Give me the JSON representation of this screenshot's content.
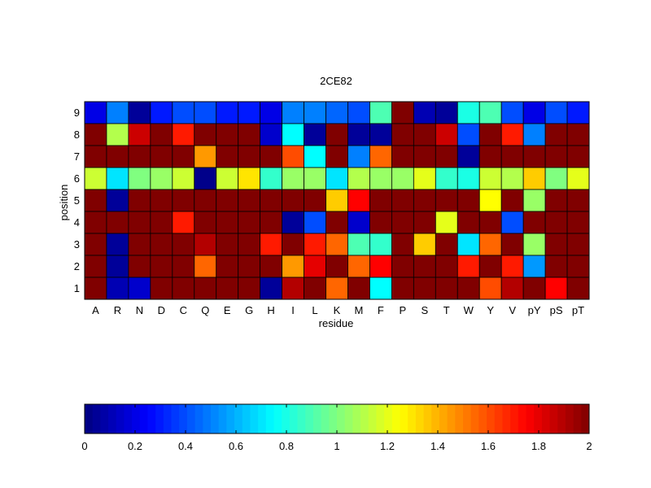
{
  "chart_data": {
    "type": "heatmap",
    "title": "2CE82",
    "xlabel": "residue",
    "ylabel": "position",
    "x_categories": [
      "A",
      "R",
      "N",
      "D",
      "C",
      "Q",
      "E",
      "G",
      "H",
      "I",
      "L",
      "K",
      "M",
      "F",
      "P",
      "S",
      "T",
      "W",
      "Y",
      "V",
      "pY",
      "pS",
      "pT"
    ],
    "y_categories": [
      "9",
      "8",
      "7",
      "6",
      "5",
      "4",
      "3",
      "2",
      "1"
    ],
    "values": [
      [
        0.2,
        0.5,
        0.05,
        0.3,
        0.4,
        0.4,
        0.3,
        0.3,
        0.2,
        0.5,
        0.5,
        0.45,
        0.4,
        0.9,
        2.0,
        0.1,
        0.05,
        0.8,
        0.9,
        0.4,
        0.2,
        0.4,
        0.3
      ],
      [
        2.0,
        1.1,
        1.85,
        2.0,
        1.7,
        2.0,
        2.0,
        2.0,
        0.15,
        0.75,
        0.05,
        2.0,
        0.05,
        0.05,
        2.0,
        2.0,
        1.85,
        0.4,
        2.0,
        1.7,
        0.5,
        2.0,
        2.0
      ],
      [
        2.0,
        2.0,
        2.0,
        2.0,
        2.0,
        1.45,
        2.0,
        2.0,
        2.0,
        1.6,
        0.75,
        2.0,
        0.5,
        1.55,
        2.0,
        2.0,
        2.0,
        0.05,
        2.0,
        2.0,
        2.0,
        2.0,
        2.0
      ],
      [
        1.15,
        0.7,
        1.0,
        1.05,
        1.15,
        0.02,
        1.15,
        1.3,
        0.85,
        1.05,
        1.05,
        0.7,
        1.1,
        1.05,
        1.05,
        1.2,
        0.85,
        0.8,
        1.15,
        1.1,
        1.35,
        1.0,
        1.2
      ],
      [
        2.0,
        0.05,
        2.0,
        2.0,
        2.0,
        2.0,
        2.0,
        2.0,
        2.0,
        2.0,
        2.0,
        1.35,
        1.75,
        2.0,
        2.0,
        2.0,
        2.0,
        2.0,
        1.25,
        2.0,
        1.05,
        2.0,
        2.0
      ],
      [
        2.0,
        2.0,
        2.0,
        2.0,
        1.7,
        2.0,
        2.0,
        2.0,
        2.0,
        0.05,
        0.4,
        2.0,
        0.15,
        2.0,
        2.0,
        2.0,
        1.2,
        2.0,
        2.0,
        0.4,
        2.0,
        2.0,
        2.0
      ],
      [
        2.0,
        0.05,
        2.0,
        2.0,
        2.0,
        1.9,
        2.0,
        2.0,
        1.7,
        2.0,
        1.7,
        1.55,
        0.9,
        0.85,
        2.0,
        1.35,
        2.0,
        0.7,
        1.55,
        2.0,
        1.05,
        2.0,
        2.0
      ],
      [
        2.0,
        0.05,
        2.0,
        2.0,
        2.0,
        1.55,
        2.0,
        2.0,
        2.0,
        1.45,
        1.8,
        2.0,
        1.55,
        1.75,
        2.0,
        2.0,
        2.0,
        1.7,
        2.0,
        1.7,
        0.55,
        2.0,
        2.0
      ],
      [
        2.0,
        0.1,
        0.15,
        2.0,
        2.0,
        2.0,
        2.0,
        2.0,
        0.05,
        1.9,
        2.0,
        1.55,
        2.0,
        0.75,
        2.0,
        2.0,
        2.0,
        2.0,
        1.6,
        1.9,
        2.0,
        1.75,
        2.0
      ]
    ],
    "colorbar": {
      "colormap": "jet",
      "range": [
        0,
        2
      ],
      "tick_labels": [
        "0",
        "0.2",
        "0.4",
        "0.6",
        "0.8",
        "1",
        "1.2",
        "1.4",
        "1.6",
        "1.8",
        "2"
      ],
      "placement": "bottom"
    },
    "grid": true
  }
}
